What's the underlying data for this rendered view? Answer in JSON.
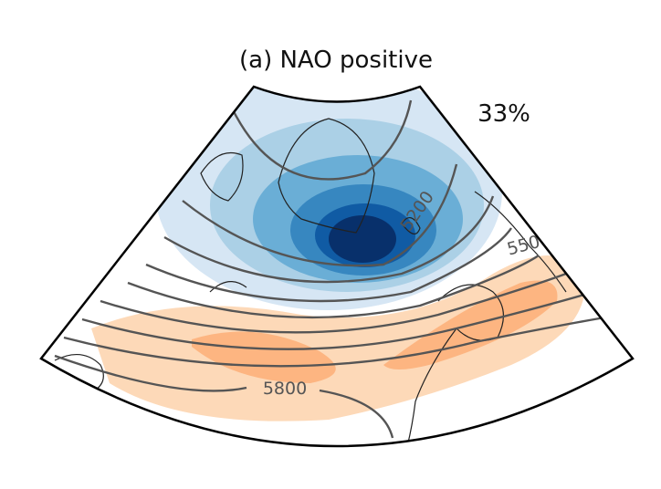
{
  "title": "(a) NAO positive",
  "frequency": "33%",
  "contour_labels": [
    "5200",
    "550",
    "5800"
  ]
}
